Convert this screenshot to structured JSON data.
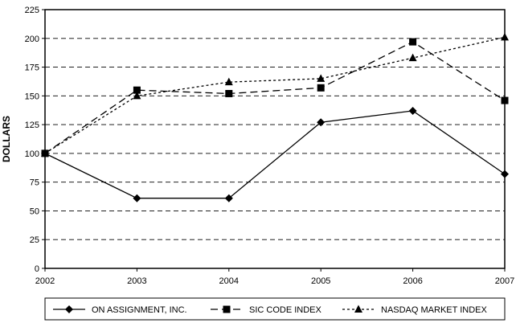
{
  "chart_data": {
    "type": "line",
    "title": "",
    "xlabel": "",
    "ylabel": "DOLLARS",
    "x": [
      "2002",
      "2003",
      "2004",
      "2005",
      "2006",
      "2007"
    ],
    "ylim": [
      0,
      225
    ],
    "yticks": [
      0,
      25,
      50,
      75,
      100,
      125,
      150,
      175,
      200,
      225
    ],
    "grid": "horizontal dashed",
    "legend_position": "bottom",
    "series": [
      {
        "name": "ON ASSIGNMENT, INC.",
        "values": [
          100,
          61,
          61,
          127,
          137,
          82
        ],
        "marker": "diamond",
        "line_style": "solid",
        "color": "#000000"
      },
      {
        "name": "SIC CODE INDEX",
        "values": [
          100,
          155,
          152,
          157,
          197,
          146
        ],
        "marker": "square",
        "line_style": "long-dash",
        "color": "#000000"
      },
      {
        "name": "NASDAQ MARKET INDEX",
        "values": [
          100,
          150,
          162,
          165,
          183,
          201
        ],
        "marker": "triangle",
        "line_style": "short-dash",
        "color": "#000000"
      }
    ]
  }
}
